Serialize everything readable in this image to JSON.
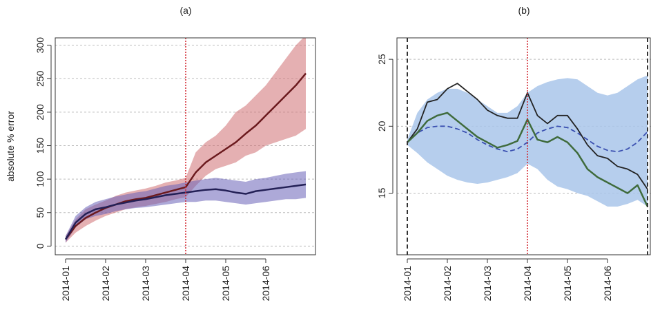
{
  "chart_data": [
    {
      "type": "line",
      "title": "(a)",
      "ylabel": "absolute % error",
      "categories": [
        "2014-01",
        null,
        null,
        null,
        "2014-02",
        null,
        null,
        null,
        "2014-03",
        null,
        null,
        null,
        "2014-04",
        null,
        null,
        null,
        "2014-05",
        null,
        null,
        null,
        "2014-06",
        null,
        null,
        null,
        null
      ],
      "ylim": [
        -13,
        311
      ],
      "yticks": [
        0,
        50,
        100,
        150,
        200,
        250,
        300
      ],
      "grid": true,
      "vline_category": "2014-04",
      "vline_color": "#d0202a",
      "series": [
        {
          "kind": "band",
          "color": "#cf6f73",
          "opacity": 0.55,
          "lower": [
            5,
            20,
            30,
            38,
            45,
            50,
            55,
            58,
            60,
            63,
            66,
            70,
            73,
            90,
            105,
            115,
            120,
            125,
            135,
            140,
            150,
            155,
            160,
            165,
            175
          ],
          "upper": [
            15,
            40,
            55,
            62,
            68,
            75,
            80,
            83,
            86,
            90,
            95,
            98,
            102,
            140,
            155,
            165,
            180,
            200,
            210,
            225,
            240,
            260,
            280,
            300,
            315
          ]
        },
        {
          "kind": "band",
          "color": "#6a63b8",
          "opacity": 0.55,
          "lower": [
            5,
            28,
            40,
            45,
            48,
            52,
            55,
            57,
            58,
            60,
            62,
            64,
            66,
            66,
            68,
            68,
            66,
            64,
            62,
            64,
            66,
            68,
            70,
            70,
            72
          ],
          "upper": [
            15,
            45,
            58,
            66,
            70,
            74,
            77,
            80,
            82,
            86,
            90,
            92,
            95,
            98,
            100,
            102,
            100,
            98,
            96,
            100,
            102,
            105,
            108,
            110,
            112
          ]
        },
        {
          "kind": "line",
          "color": "#6b1a1e",
          "width": 2.5,
          "values": [
            10,
            30,
            42,
            50,
            57,
            62,
            67,
            70,
            72,
            76,
            80,
            84,
            88,
            110,
            125,
            135,
            145,
            155,
            168,
            180,
            195,
            210,
            225,
            240,
            258
          ]
        },
        {
          "kind": "line",
          "color": "#232056",
          "width": 2.5,
          "values": [
            10,
            35,
            48,
            55,
            58,
            62,
            65,
            68,
            70,
            73,
            76,
            78,
            80,
            82,
            84,
            85,
            83,
            80,
            78,
            82,
            84,
            86,
            88,
            90,
            92
          ]
        }
      ]
    },
    {
      "type": "line",
      "title": "(b)",
      "categories": [
        "2014-01",
        null,
        null,
        null,
        "2014-02",
        null,
        null,
        null,
        "2014-03",
        null,
        null,
        null,
        "2014-04",
        null,
        null,
        null,
        "2014-05",
        null,
        null,
        null,
        "2014-06",
        null,
        null,
        null,
        null
      ],
      "ylim": [
        10.4,
        26.6
      ],
      "yticks": [
        15,
        20,
        25
      ],
      "grid": true,
      "vline_category": "2014-04",
      "vline_color": "#d0202a",
      "dashed_edges": true,
      "series": [
        {
          "kind": "band",
          "color": "#a9c6ea",
          "opacity": 0.85,
          "lower": [
            18.6,
            18.0,
            17.3,
            16.8,
            16.3,
            16.0,
            15.8,
            15.7,
            15.8,
            16.0,
            16.2,
            16.5,
            17.2,
            16.8,
            16.0,
            15.5,
            15.3,
            15.0,
            14.8,
            14.4,
            14.0,
            14.0,
            14.2,
            14.5,
            14.0
          ],
          "upper": [
            19,
            21.0,
            22.0,
            22.5,
            22.8,
            22.8,
            22.5,
            22.0,
            21.5,
            21.0,
            21.0,
            21.5,
            22.5,
            23.0,
            23.3,
            23.5,
            23.6,
            23.5,
            23.0,
            22.5,
            22.3,
            22.5,
            23.0,
            23.5,
            23.8
          ]
        },
        {
          "kind": "line",
          "color": "#3a4fb0",
          "width": 1.8,
          "dash": true,
          "values": [
            18.8,
            19.5,
            19.9,
            20.0,
            20.0,
            19.8,
            19.5,
            19.0,
            18.6,
            18.3,
            18.1,
            18.3,
            18.8,
            19.5,
            19.8,
            20.0,
            19.9,
            19.5,
            19.0,
            18.5,
            18.2,
            18.1,
            18.3,
            18.8,
            19.6
          ]
        },
        {
          "kind": "line",
          "color": "#222222",
          "width": 1.8,
          "values": [
            18.8,
            19.8,
            21.8,
            22.0,
            22.8,
            23.2,
            22.6,
            22.0,
            21.2,
            20.8,
            20.6,
            20.6,
            22.5,
            20.8,
            20.2,
            20.8,
            20.8,
            19.8,
            18.6,
            17.8,
            17.6,
            17.0,
            16.8,
            16.4,
            15.3
          ]
        },
        {
          "kind": "line",
          "color": "#3f6b3c",
          "width": 2.5,
          "values": [
            18.8,
            19.5,
            20.4,
            20.8,
            21.0,
            20.4,
            19.8,
            19.2,
            18.8,
            18.4,
            18.6,
            18.9,
            20.5,
            19.0,
            18.8,
            19.2,
            18.8,
            18.0,
            16.8,
            16.2,
            15.8,
            15.4,
            15.0,
            15.6,
            14.0
          ]
        }
      ]
    }
  ]
}
